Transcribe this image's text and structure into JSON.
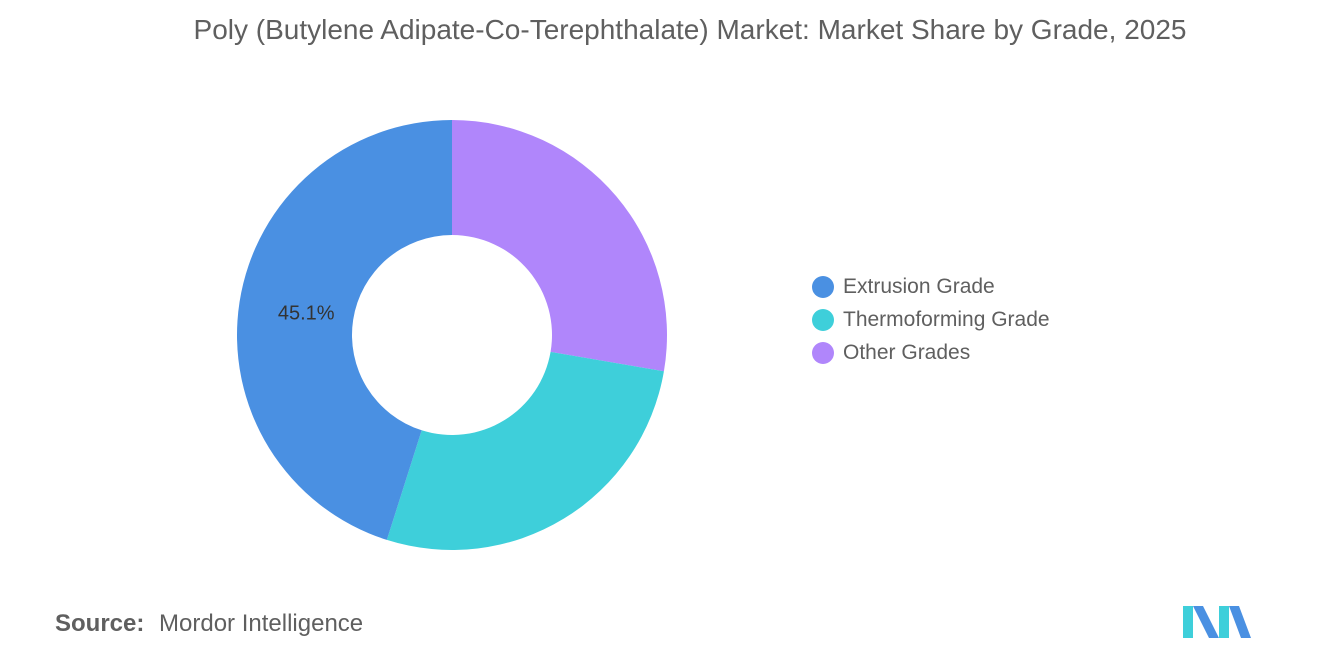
{
  "title": "Poly (Butylene Adipate-Co-Terephthalate) Market: Market Share by Grade, 2025",
  "chart_data": {
    "type": "pie",
    "donut": true,
    "title": "Poly (Butylene Adipate-Co-Terephthalate) Market: Market Share by Grade, 2025",
    "categories": [
      "Extrusion Grade",
      "Thermoforming Grade",
      "Other Grades"
    ],
    "values": [
      45.1,
      27.2,
      27.7
    ],
    "data_labels": [
      "45.1%",
      "",
      ""
    ],
    "colors": [
      "#4a90e2",
      "#3ecfda",
      "#b086fb"
    ],
    "legend_position": "right"
  },
  "source": {
    "label": "Source:",
    "value": "Mordor Intelligence"
  },
  "logo": {
    "icon": "mordor-intelligence-logo-icon",
    "colors": [
      "#3ecfda",
      "#4a90e2"
    ]
  }
}
